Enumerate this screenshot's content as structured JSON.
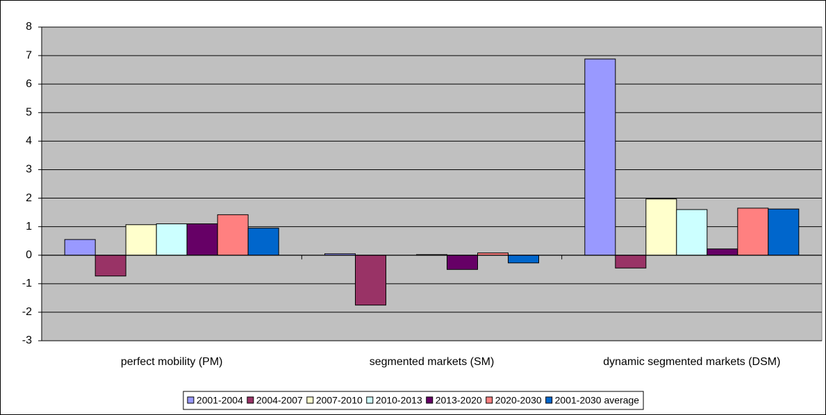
{
  "chart_data": {
    "type": "bar",
    "categories": [
      "perfect mobility (PM)",
      "segmented markets (SM)",
      "dynamic segmented markets (DSM)"
    ],
    "series": [
      {
        "name": "2001-2004",
        "color": "#9999ff",
        "values": [
          0.55,
          0.05,
          6.88
        ]
      },
      {
        "name": "2004-2007",
        "color": "#993366",
        "values": [
          -0.73,
          -1.75,
          -0.45
        ]
      },
      {
        "name": "2007-2010",
        "color": "#ffffcc",
        "values": [
          1.07,
          0,
          1.97
        ]
      },
      {
        "name": "2010-2013",
        "color": "#ccffff",
        "values": [
          1.1,
          0.02,
          1.6
        ]
      },
      {
        "name": "2013-2020",
        "color": "#660066",
        "values": [
          1.1,
          -0.5,
          0.22
        ]
      },
      {
        "name": "2020-2030",
        "color": "#ff8080",
        "values": [
          1.42,
          0.08,
          1.65
        ]
      },
      {
        "name": "2001-2030 average",
        "color": "#0066cc",
        "values": [
          0.95,
          -0.27,
          1.62
        ]
      }
    ],
    "ylim": [
      -3,
      8
    ],
    "yticks": [
      -3,
      -2,
      -1,
      0,
      1,
      2,
      3,
      4,
      5,
      6,
      7,
      8
    ],
    "grid": true,
    "legend": "bottom"
  }
}
